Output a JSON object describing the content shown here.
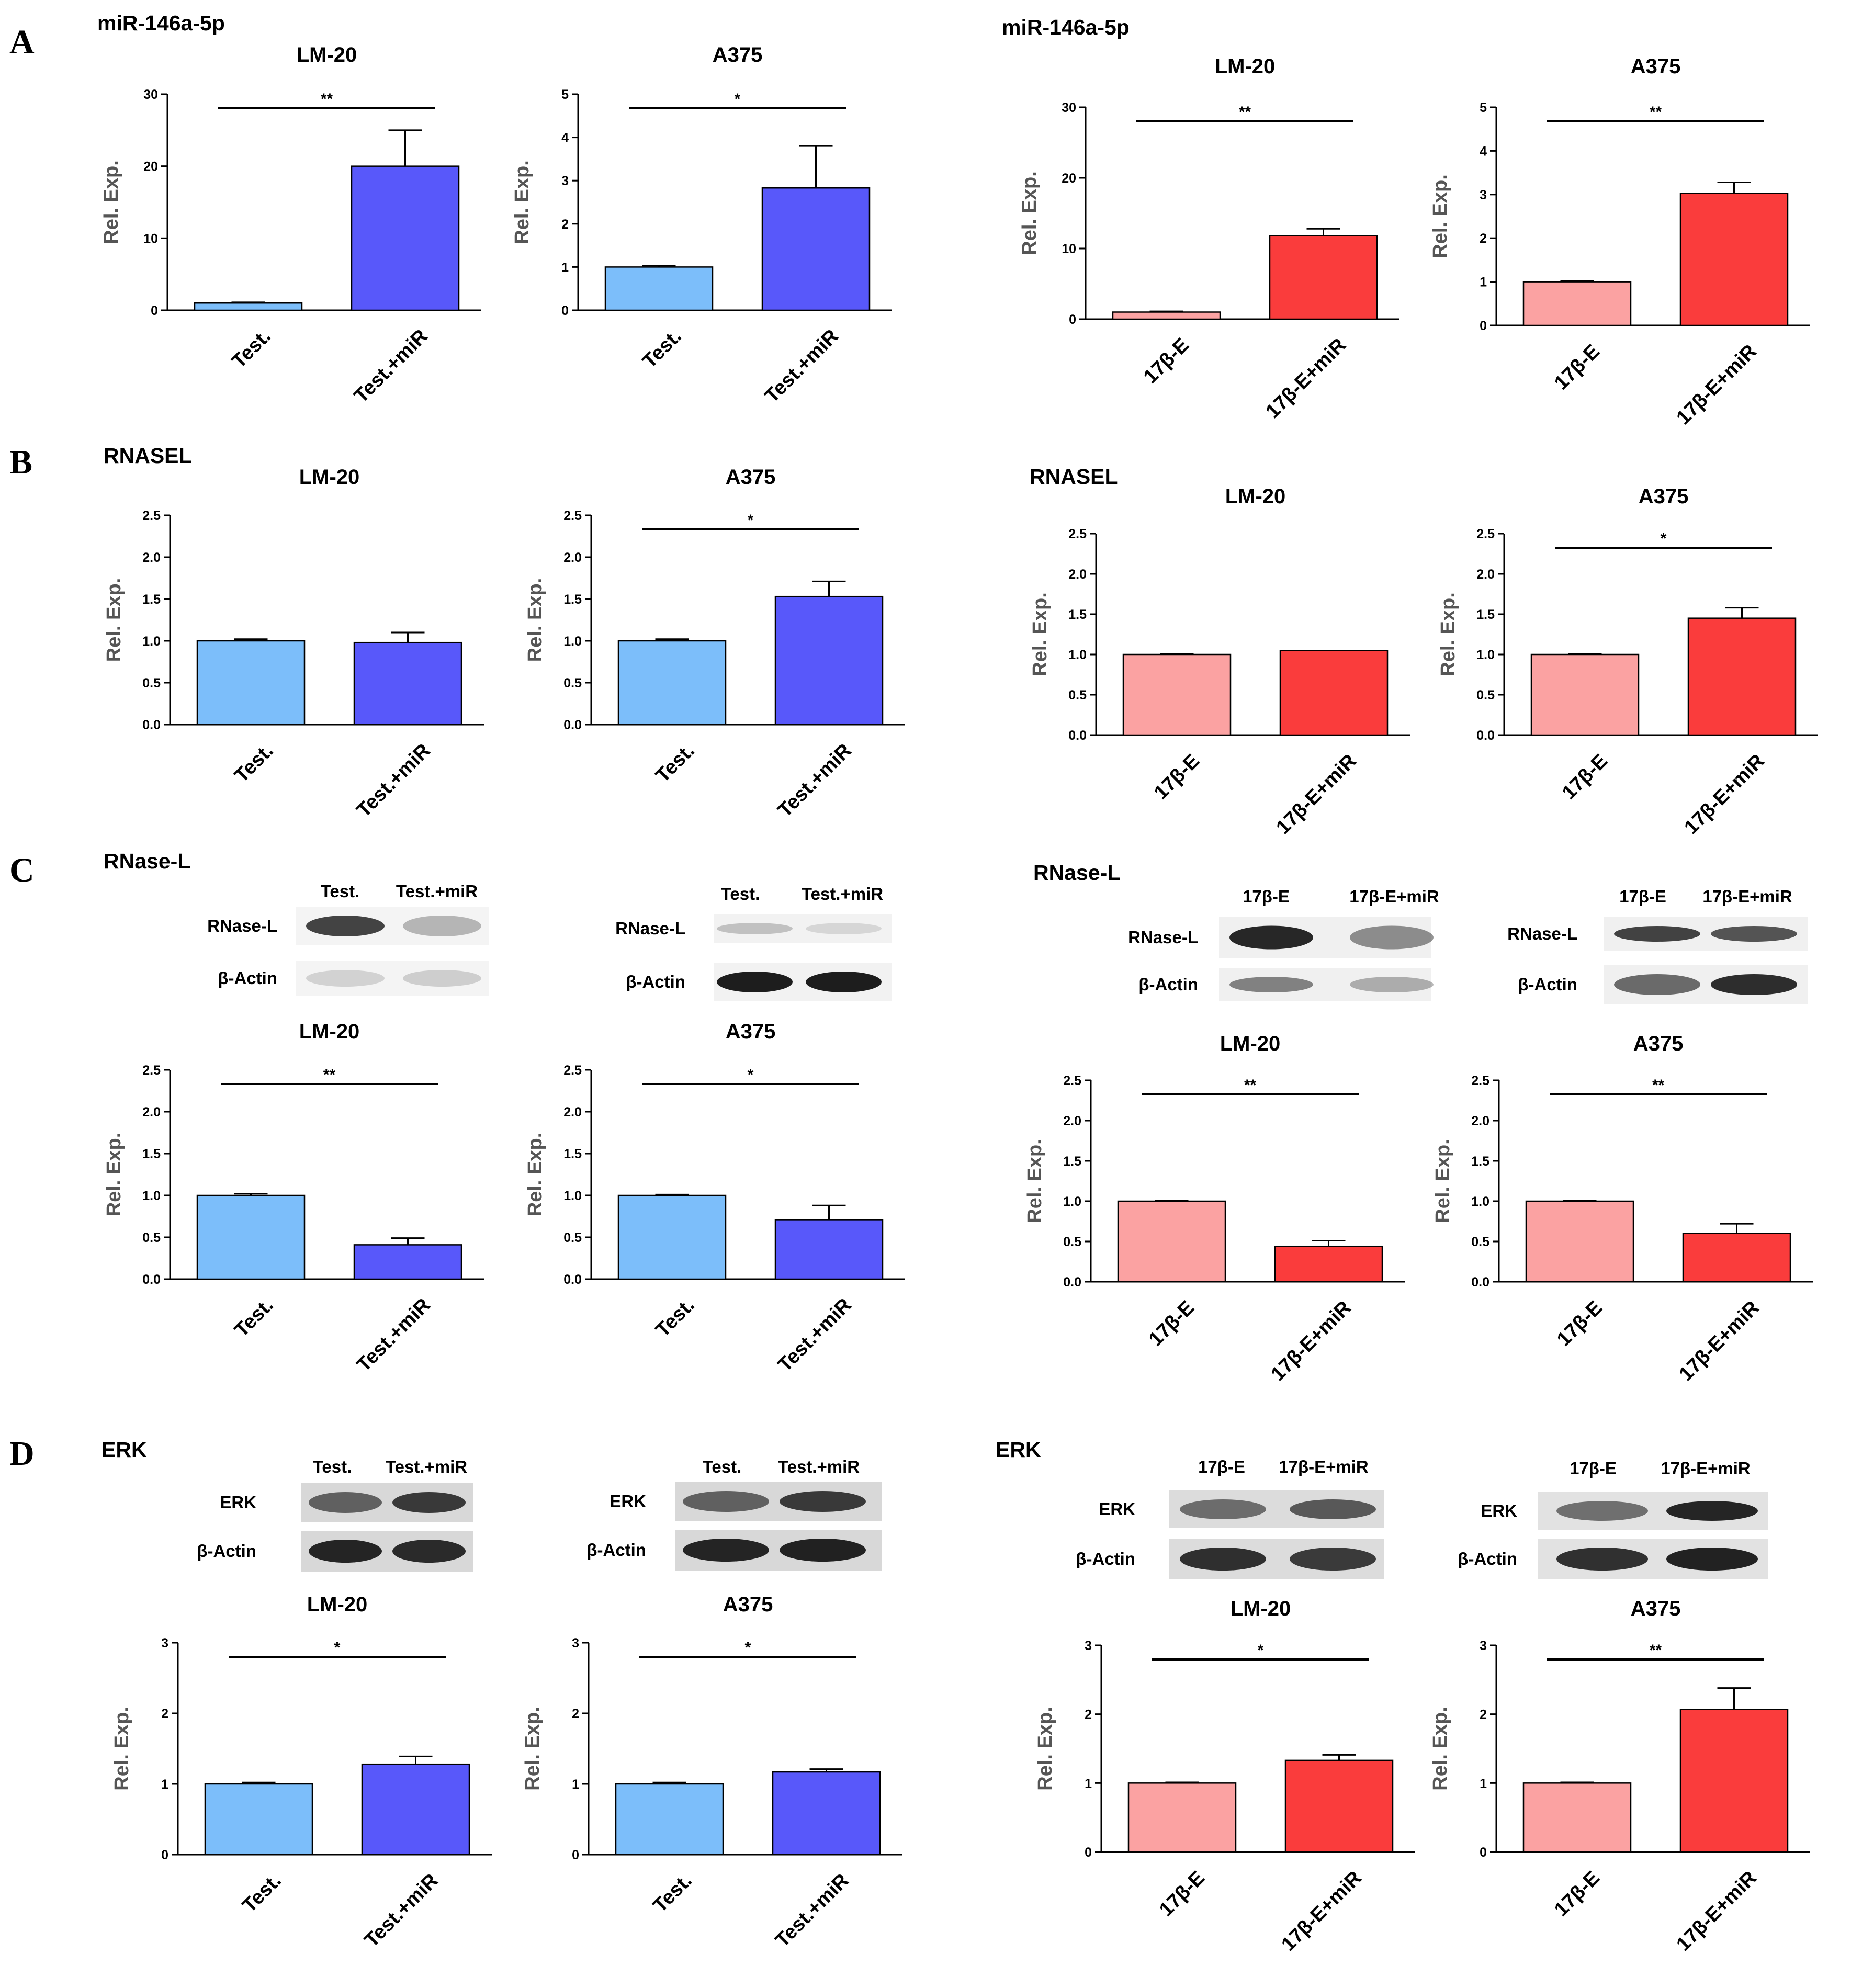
{
  "figure": {
    "panel_letters": [
      "A",
      "B",
      "C",
      "D"
    ],
    "section_titles": {
      "A_left": "miR-146a-5p",
      "A_right": "miR-146a-5p",
      "B_left": "RNASEL",
      "B_right": "RNASEL",
      "C_left": "RNase-L",
      "C_right": "RNase-L",
      "D_left": "ERK",
      "D_right": "ERK"
    },
    "blots": [
      {
        "id": "C1",
        "lanes": [
          "Test.",
          "Test.+miR"
        ],
        "rows": [
          "RNase-L",
          "β-Actin"
        ]
      },
      {
        "id": "C2",
        "lanes": [
          "Test.",
          "Test.+miR"
        ],
        "rows": [
          "RNase-L",
          "β-Actin"
        ]
      },
      {
        "id": "C3",
        "lanes": [
          "17β-E",
          "17β-E+miR"
        ],
        "rows": [
          "RNase-L",
          "β-Actin"
        ]
      },
      {
        "id": "C4",
        "lanes": [
          "17β-E",
          "17β-E+miR"
        ],
        "rows": [
          "RNase-L",
          "β-Actin"
        ]
      },
      {
        "id": "D1",
        "lanes": [
          "Test.",
          "Test.+miR"
        ],
        "rows": [
          "ERK",
          "β-Actin"
        ]
      },
      {
        "id": "D2",
        "lanes": [
          "Test.",
          "Test.+miR"
        ],
        "rows": [
          "ERK",
          "β-Actin"
        ]
      },
      {
        "id": "D3",
        "lanes": [
          "17β-E",
          "17β-E+miR"
        ],
        "rows": [
          "ERK",
          "β-Actin"
        ]
      },
      {
        "id": "D4",
        "lanes": [
          "17β-E",
          "17β-E+miR"
        ],
        "rows": [
          "ERK",
          "β-Actin"
        ]
      }
    ],
    "colors": {
      "test_control": "#7cbefa",
      "test_mir": "#5858fa",
      "e_control": "#fba2a2",
      "e_mir": "#fa3c3c"
    }
  },
  "chart_data": [
    {
      "id": "A1",
      "type": "bar",
      "title": "LM-20",
      "ylabel": "Rel. Exp.",
      "categories": [
        "Test.",
        "Test.+miR"
      ],
      "values": [
        1,
        20
      ],
      "errors": [
        0.1,
        5
      ],
      "ylim": [
        0,
        30
      ],
      "yticks": [
        "0",
        "10",
        "20",
        "30"
      ],
      "significance": "**",
      "colors": [
        "#7cbefa",
        "#5858fa"
      ]
    },
    {
      "id": "A2",
      "type": "bar",
      "title": "A375",
      "ylabel": "Rel. Exp.",
      "categories": [
        "Test.",
        "Test.+miR"
      ],
      "values": [
        1,
        2.83
      ],
      "errors": [
        0.03,
        0.97
      ],
      "ylim": [
        0,
        5
      ],
      "yticks": [
        "0",
        "1",
        "2",
        "3",
        "4",
        "5"
      ],
      "significance": "*",
      "colors": [
        "#7cbefa",
        "#5858fa"
      ]
    },
    {
      "id": "A3",
      "type": "bar",
      "title": "LM-20",
      "ylabel": "Rel. Exp.",
      "categories": [
        "17β-E",
        "17β-E+miR"
      ],
      "values": [
        1,
        11.8
      ],
      "errors": [
        0.1,
        1
      ],
      "ylim": [
        0,
        30
      ],
      "yticks": [
        "0",
        "10",
        "20",
        "30"
      ],
      "significance": "**",
      "colors": [
        "#fba2a2",
        "#fa3c3c"
      ]
    },
    {
      "id": "A4",
      "type": "bar",
      "title": "A375",
      "ylabel": "Rel. Exp.",
      "categories": [
        "17β-E",
        "17β-E+miR"
      ],
      "values": [
        1,
        3.03
      ],
      "errors": [
        0.02,
        0.25
      ],
      "ylim": [
        0,
        5
      ],
      "yticks": [
        "0",
        "1",
        "2",
        "3",
        "4",
        "5"
      ],
      "significance": "**",
      "colors": [
        "#fba2a2",
        "#fa3c3c"
      ]
    },
    {
      "id": "B1",
      "type": "bar",
      "title": "LM-20",
      "ylabel": "Rel. Exp.",
      "categories": [
        "Test.",
        "Test.+miR"
      ],
      "values": [
        1,
        0.98
      ],
      "errors": [
        0.02,
        0.12
      ],
      "ylim": [
        0,
        2.5
      ],
      "yticks": [
        "0.0",
        "0.5",
        "1.0",
        "1.5",
        "2.0",
        "2.5"
      ],
      "significance": "",
      "colors": [
        "#7cbefa",
        "#5858fa"
      ]
    },
    {
      "id": "B2",
      "type": "bar",
      "title": "A375",
      "ylabel": "Rel. Exp.",
      "categories": [
        "Test.",
        "Test.+miR"
      ],
      "values": [
        1,
        1.53
      ],
      "errors": [
        0.02,
        0.18
      ],
      "ylim": [
        0,
        2.5
      ],
      "yticks": [
        "0.0",
        "0.5",
        "1.0",
        "1.5",
        "2.0",
        "2.5"
      ],
      "significance": "*",
      "colors": [
        "#7cbefa",
        "#5858fa"
      ]
    },
    {
      "id": "B3",
      "type": "bar",
      "title": "LM-20",
      "ylabel": "Rel. Exp.",
      "categories": [
        "17β-E",
        "17β-E+miR"
      ],
      "values": [
        1,
        1.05
      ],
      "errors": [
        0.01,
        0
      ],
      "ylim": [
        0,
        2.5
      ],
      "yticks": [
        "0.0",
        "0.5",
        "1.0",
        "1.5",
        "2.0",
        "2.5"
      ],
      "significance": "",
      "colors": [
        "#fba2a2",
        "#fa3c3c"
      ]
    },
    {
      "id": "B4",
      "type": "bar",
      "title": "A375",
      "ylabel": "Rel. Exp.",
      "categories": [
        "17β-E",
        "17β-E+miR"
      ],
      "values": [
        1,
        1.45
      ],
      "errors": [
        0.01,
        0.13
      ],
      "ylim": [
        0,
        2.5
      ],
      "yticks": [
        "0.0",
        "0.5",
        "1.0",
        "1.5",
        "2.0",
        "2.5"
      ],
      "significance": "*",
      "colors": [
        "#fba2a2",
        "#fa3c3c"
      ]
    },
    {
      "id": "C1",
      "type": "bar",
      "title": "LM-20",
      "ylabel": "Rel. Exp.",
      "categories": [
        "Test.",
        "Test.+miR"
      ],
      "values": [
        1,
        0.41
      ],
      "errors": [
        0.02,
        0.08
      ],
      "ylim": [
        0,
        2.5
      ],
      "yticks": [
        "0.0",
        "0.5",
        "1.0",
        "1.5",
        "2.0",
        "2.5"
      ],
      "significance": "**",
      "colors": [
        "#7cbefa",
        "#5858fa"
      ]
    },
    {
      "id": "C2",
      "type": "bar",
      "title": "A375",
      "ylabel": "Rel. Exp.",
      "categories": [
        "Test.",
        "Test.+miR"
      ],
      "values": [
        1,
        0.71
      ],
      "errors": [
        0.01,
        0.17
      ],
      "ylim": [
        0,
        2.5
      ],
      "yticks": [
        "0.0",
        "0.5",
        "1.0",
        "1.5",
        "2.0",
        "2.5"
      ],
      "significance": "*",
      "colors": [
        "#7cbefa",
        "#5858fa"
      ]
    },
    {
      "id": "C3",
      "type": "bar",
      "title": "LM-20",
      "ylabel": "Rel. Exp.",
      "categories": [
        "17β-E",
        "17β-E+miR"
      ],
      "values": [
        1,
        0.44
      ],
      "errors": [
        0.01,
        0.07
      ],
      "ylim": [
        0,
        2.5
      ],
      "yticks": [
        "0.0",
        "0.5",
        "1.0",
        "1.5",
        "2.0",
        "2.5"
      ],
      "significance": "**",
      "colors": [
        "#fba2a2",
        "#fa3c3c"
      ]
    },
    {
      "id": "C4",
      "type": "bar",
      "title": "A375",
      "ylabel": "Rel. Exp.",
      "categories": [
        "17β-E",
        "17β-E+miR"
      ],
      "values": [
        1,
        0.6
      ],
      "errors": [
        0.01,
        0.12
      ],
      "ylim": [
        0,
        2.5
      ],
      "yticks": [
        "0.0",
        "0.5",
        "1.0",
        "1.5",
        "2.0",
        "2.5"
      ],
      "significance": "**",
      "colors": [
        "#fba2a2",
        "#fa3c3c"
      ]
    },
    {
      "id": "D1",
      "type": "bar",
      "title": "LM-20",
      "ylabel": "Rel. Exp.",
      "categories": [
        "Test.",
        "Test.+miR"
      ],
      "values": [
        1,
        1.28
      ],
      "errors": [
        0.02,
        0.11
      ],
      "ylim": [
        0,
        3
      ],
      "yticks": [
        "0",
        "1",
        "2",
        "3"
      ],
      "significance": "*",
      "colors": [
        "#7cbefa",
        "#5858fa"
      ]
    },
    {
      "id": "D2",
      "type": "bar",
      "title": "A375",
      "ylabel": "Rel. Exp.",
      "categories": [
        "Test.",
        "Test.+miR"
      ],
      "values": [
        1,
        1.17
      ],
      "errors": [
        0.02,
        0.04
      ],
      "ylim": [
        0,
        3
      ],
      "yticks": [
        "0",
        "1",
        "2",
        "3"
      ],
      "significance": "*",
      "colors": [
        "#7cbefa",
        "#5858fa"
      ]
    },
    {
      "id": "D3",
      "type": "bar",
      "title": "LM-20",
      "ylabel": "Rel. Exp.",
      "categories": [
        "17β-E",
        "17β-E+miR"
      ],
      "values": [
        1,
        1.33
      ],
      "errors": [
        0.01,
        0.08
      ],
      "ylim": [
        0,
        3
      ],
      "yticks": [
        "0",
        "1",
        "2",
        "3"
      ],
      "significance": "*",
      "colors": [
        "#fba2a2",
        "#fa3c3c"
      ]
    },
    {
      "id": "D4",
      "type": "bar",
      "title": "A375",
      "ylabel": "Rel. Exp.",
      "categories": [
        "17β-E",
        "17β-E+miR"
      ],
      "values": [
        1,
        2.07
      ],
      "errors": [
        0.01,
        0.31
      ],
      "ylim": [
        0,
        3
      ],
      "yticks": [
        "0",
        "1",
        "2",
        "3"
      ],
      "significance": "**",
      "colors": [
        "#fba2a2",
        "#fa3c3c"
      ]
    }
  ]
}
